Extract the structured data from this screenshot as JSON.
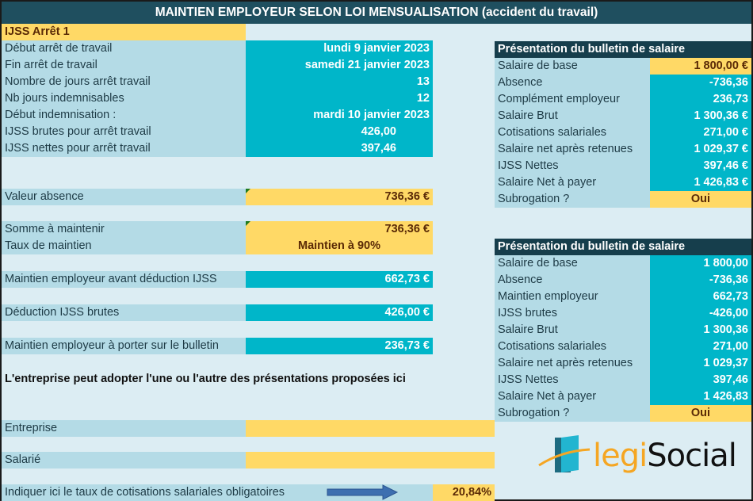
{
  "title": "MAINTIEN EMPLOYEUR SELON LOI MENSUALISATION (accident du travail)",
  "left": {
    "section_label": "IJSS Arrêt 1",
    "details": [
      {
        "label": "Début arrêt de travail",
        "value": "lundi 9 janvier 2023"
      },
      {
        "label": "Fin arrêt de travail",
        "value": "samedi 21 janvier 2023"
      },
      {
        "label": "Nombre de jours arrêt travail",
        "value": "13"
      },
      {
        "label": "Nb jours indemnisables",
        "value": "12"
      },
      {
        "label": "Début indemnisation :",
        "value": "mardi 10 janvier 2023"
      },
      {
        "label": "IJSS brutes pour arrêt travail",
        "value": "426,00"
      },
      {
        "label": "IJSS nettes pour arrêt travail",
        "value": "397,46"
      }
    ],
    "valeur_absence": {
      "label": "Valeur absence",
      "value": "736,36 €"
    },
    "somme_maintenir": {
      "label": "Somme à maintenir",
      "value": "736,36 €"
    },
    "taux_maintien": {
      "label": "Taux de maintien",
      "value": "Maintien à 90%"
    },
    "maintien_avant": {
      "label": "Maintien employeur avant déduction IJSS",
      "value": "662,73 €"
    },
    "deduction": {
      "label": "Déduction IJSS brutes",
      "value": "426,00 €"
    },
    "maintien_bulletin": {
      "label": "Maintien employeur à porter sur le bulletin",
      "value": "236,73 €"
    },
    "note": "L'entreprise peut adopter l'une ou l'autre des présentations proposées ici",
    "entreprise": {
      "label": "Entreprise",
      "value": ""
    },
    "salarie": {
      "label": "Salarié",
      "value": ""
    },
    "taux_cotisations": {
      "label": "Indiquer ici le taux de cotisations salariales obligatoires",
      "value": "20,84%"
    }
  },
  "panel1": {
    "title": "Présentation du bulletin de salaire",
    "rows": [
      {
        "label": "Salaire de base",
        "value": "1 800,00 €",
        "style": "yellow"
      },
      {
        "label": "Absence",
        "value": "-736,36",
        "style": "teal"
      },
      {
        "label": "Complément employeur",
        "value": "236,73",
        "style": "teal"
      },
      {
        "label": "Salaire Brut",
        "value": "1 300,36 €",
        "style": "teal"
      },
      {
        "label": "Cotisations salariales",
        "value": "271,00 €",
        "style": "teal"
      },
      {
        "label": "Salaire net après retenues",
        "value": "1 029,37 €",
        "style": "teal"
      },
      {
        "label": "IJSS Nettes",
        "value": "397,46 €",
        "style": "teal"
      },
      {
        "label": "Salaire Net à payer",
        "value": "1 426,83 €",
        "style": "teal"
      },
      {
        "label": "Subrogation ?",
        "value": "Oui",
        "style": "yellow-center"
      }
    ]
  },
  "panel2": {
    "title": "Présentation du bulletin de salaire",
    "rows": [
      {
        "label": "Salaire de base",
        "value": "1 800,00",
        "style": "teal"
      },
      {
        "label": "Absence",
        "value": "-736,36",
        "style": "teal"
      },
      {
        "label": "Maintien employeur",
        "value": "662,73",
        "style": "teal"
      },
      {
        "label": "IJSS brutes",
        "value": "-426,00",
        "style": "teal"
      },
      {
        "label": "Salaire Brut",
        "value": "1 300,36",
        "style": "teal"
      },
      {
        "label": "Cotisations salariales",
        "value": "271,00",
        "style": "teal"
      },
      {
        "label": "Salaire net après retenues",
        "value": "1 029,37",
        "style": "teal"
      },
      {
        "label": "IJSS Nettes",
        "value": "397,46",
        "style": "teal"
      },
      {
        "label": "Salaire Net à payer",
        "value": "1 426,83",
        "style": "teal"
      },
      {
        "label": "Subrogation ?",
        "value": "Oui",
        "style": "yellow-center"
      }
    ]
  },
  "logo": {
    "part1": "legi",
    "part2": "Social"
  },
  "icons": {
    "arrow": "arrow-right-icon",
    "logo": "legisocial-logo"
  }
}
